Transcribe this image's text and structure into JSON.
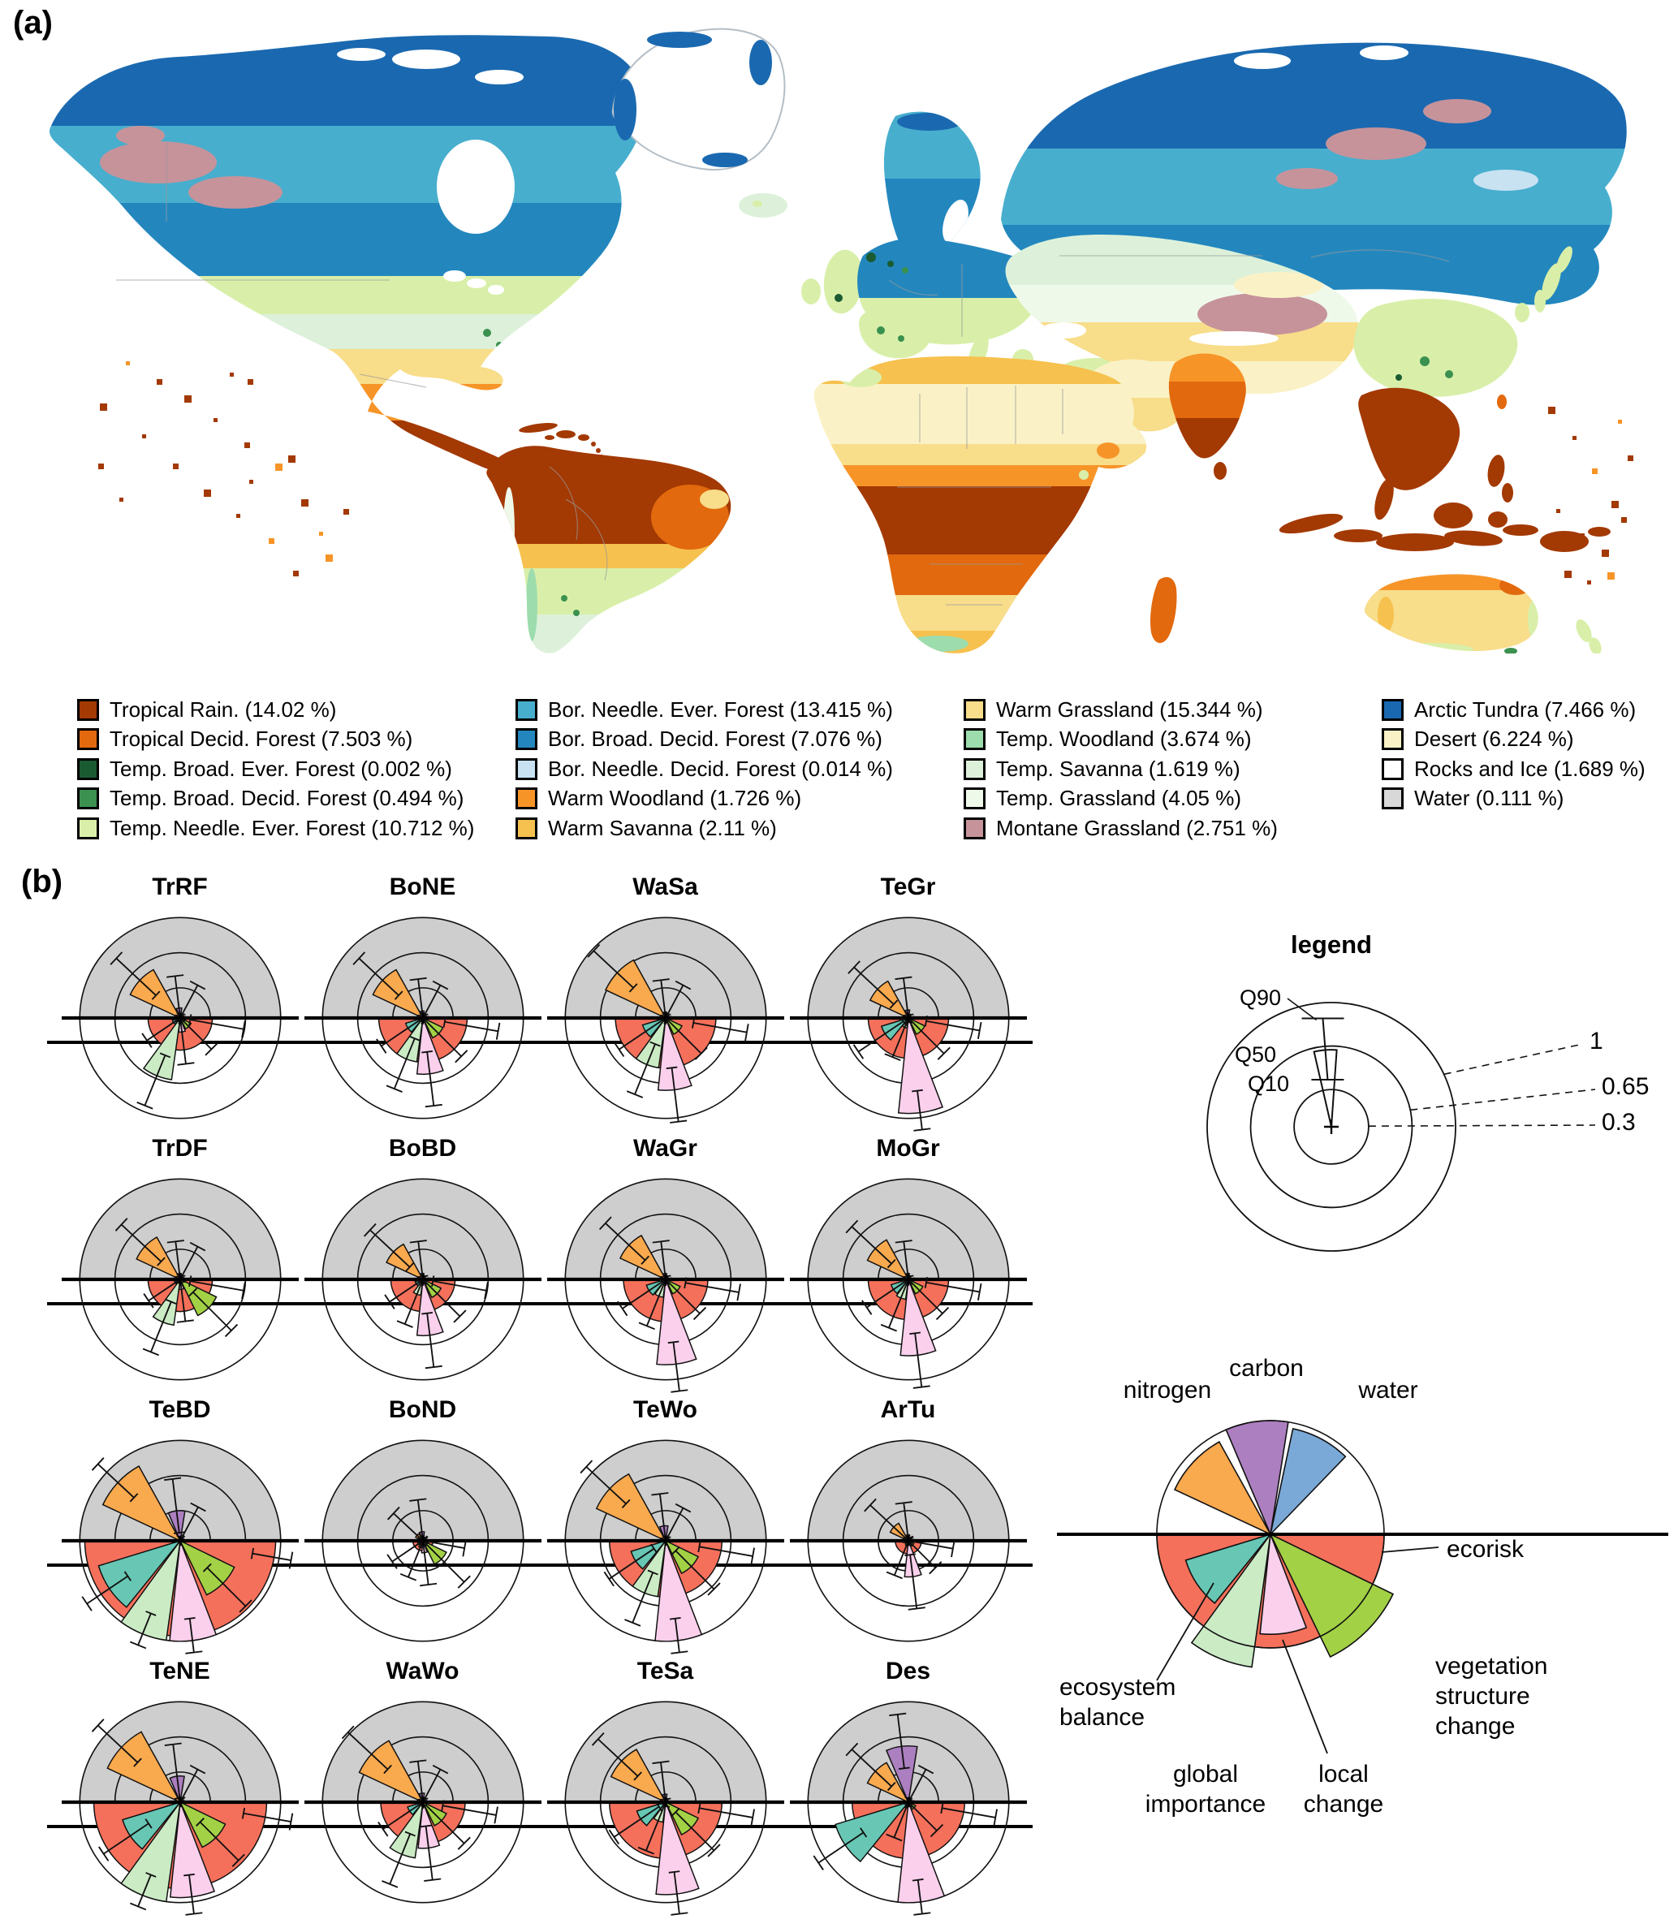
{
  "figure": {
    "panel_a_label": "(a)",
    "panel_b_label": "(b)"
  },
  "chart_data": {
    "type": "figure",
    "panels": [
      {
        "id": "a",
        "type": "map",
        "description": "Global biome classification map",
        "legend_columns": [
          5,
          5,
          5,
          4
        ],
        "legend": [
          {
            "key": "tropical_rain",
            "label": "Tropical Rain.",
            "percent": "14.02",
            "color": "#A33903"
          },
          {
            "key": "tropical_decid",
            "label": "Tropical Decid. Forest",
            "percent": "7.503",
            "color": "#E2690D"
          },
          {
            "key": "temp_broad_ever",
            "label": "Temp. Broad. Ever. Forest",
            "percent": "0.002",
            "color": "#1B5B32"
          },
          {
            "key": "temp_broad_decid",
            "label": "Temp. Broad. Decid. Forest",
            "percent": "0.494",
            "color": "#3B9150"
          },
          {
            "key": "temp_needle_ever",
            "label": "Temp. Needle. Ever. Forest",
            "percent": "10.712",
            "color": "#D9EFA9"
          },
          {
            "key": "bor_needle_ever",
            "label": "Bor. Needle. Ever. Forest",
            "percent": "13.415",
            "color": "#48AECE"
          },
          {
            "key": "bor_broad_decid",
            "label": "Bor. Broad. Decid. Forest",
            "percent": "7.076",
            "color": "#2387BE"
          },
          {
            "key": "bor_needle_decid",
            "label": "Bor. Needle. Decid. Forest",
            "percent": "0.014",
            "color": "#C8E2F2"
          },
          {
            "key": "warm_woodland",
            "label": "Warm Woodland",
            "percent": "1.726",
            "color": "#F79428"
          },
          {
            "key": "warm_savanna",
            "label": "Warm Savanna",
            "percent": "2.11",
            "color": "#F6C14E"
          },
          {
            "key": "warm_grassland",
            "label": "Warm Grassland",
            "percent": "15.344",
            "color": "#F8DD8A"
          },
          {
            "key": "temp_woodland",
            "label": "Temp. Woodland",
            "percent": "3.674",
            "color": "#9CDCAD"
          },
          {
            "key": "temp_savanna",
            "label": "Temp. Savanna",
            "percent": "1.619",
            "color": "#DDF1DA"
          },
          {
            "key": "temp_grassland",
            "label": "Temp. Grassland",
            "percent": "4.05",
            "color": "#EFF9EA"
          },
          {
            "key": "montane_grassland",
            "label": "Montane Grassland",
            "percent": "2.751",
            "color": "#C6939B"
          },
          {
            "key": "arctic_tundra",
            "label": "Arctic Tundra",
            "percent": "7.466",
            "color": "#1A69B0"
          },
          {
            "key": "desert",
            "label": "Desert",
            "percent": "6.224",
            "color": "#FAF2C6"
          },
          {
            "key": "rocks_ice",
            "label": "Rocks and Ice",
            "percent": "1.689",
            "color": "#FFFFFF"
          },
          {
            "key": "water",
            "label": "Water",
            "percent": "0.111",
            "color": "#D8D8D8"
          }
        ]
      },
      {
        "id": "b",
        "type": "polar-rose-grid",
        "gray_background": "#CECECE",
        "rings": [
          0.3,
          0.65,
          1
        ],
        "ring_labels": [
          "1",
          "0.65",
          "0.3"
        ],
        "quantile_labels": [
          "Q90",
          "Q50",
          "Q10"
        ],
        "legend_title": "legend",
        "legend_wedge": {
          "q10": 0.38,
          "q50": 0.62,
          "q90": 0.875
        },
        "whisker": {
          "q90_delta": 0.32,
          "q10_delta": 0.22,
          "max": 1.12,
          "min": 0.03
        },
        "metrics": [
          {
            "key": "nitrogen",
            "label": "nitrogen",
            "color": "#F9A94E",
            "a0": 119,
            "a1": 155,
            "mid": 137,
            "half": "upper"
          },
          {
            "key": "carbon",
            "label": "carbon",
            "color": "#AC7FC0",
            "a0": 81,
            "a1": 113,
            "mid": 97,
            "half": "upper"
          },
          {
            "key": "water",
            "label": "water",
            "color": "#7AA9D8",
            "a0": 46,
            "a1": 78,
            "mid": 62,
            "half": "upper"
          },
          {
            "key": "ecorisk",
            "label": "ecorisk",
            "color": "#F5705B",
            "a0": 180,
            "a1": 360,
            "mid": 350,
            "half": "lower",
            "semicircle": true
          },
          {
            "key": "ecosystem_balance",
            "label": "ecosystem balance",
            "color": "#67C7B4",
            "a0": 197,
            "a1": 231,
            "mid": 214,
            "half": "lower"
          },
          {
            "key": "global_importance",
            "label": "global importance",
            "color": "#CBEBC5",
            "a0": 234,
            "a1": 262,
            "mid": 248,
            "half": "lower"
          },
          {
            "key": "local_change",
            "label": "local change",
            "color": "#FAD0EC",
            "a0": 264,
            "a1": 291,
            "mid": 277,
            "half": "lower"
          },
          {
            "key": "vegetation_structure_change",
            "label": "vegetation structure change",
            "color": "#A3D145",
            "a0": 296,
            "a1": 334,
            "mid": 315,
            "half": "lower"
          }
        ],
        "grid": [
          [
            "TrRF",
            "BoNE",
            "WaSa",
            "TeGr"
          ],
          [
            "TrDF",
            "BoBD",
            "WaGr",
            "MoGr"
          ],
          [
            "TeBD",
            "BoND",
            "TeWo",
            "ArTu"
          ],
          [
            "TeNE",
            "WaWo",
            "TeSa",
            "Des"
          ]
        ],
        "biomes": [
          {
            "code": "TrRF",
            "values": {
              "nitrogen": 0.55,
              "carbon": 0.1,
              "water": 0.05,
              "ecorisk": 0.32,
              "ecosystem_balance": 0.08,
              "global_importance": 0.62,
              "local_change": 0.14,
              "vegetation_structure_change": 0.12
            }
          },
          {
            "code": "BoNE",
            "values": {
              "nitrogen": 0.55,
              "carbon": 0.07,
              "water": 0.05,
              "ecorisk": 0.44,
              "ecosystem_balance": 0.18,
              "global_importance": 0.44,
              "local_change": 0.56,
              "vegetation_structure_change": 0.22
            }
          },
          {
            "code": "WaSa",
            "values": {
              "nitrogen": 0.66,
              "carbon": 0.06,
              "water": 0.05,
              "ecorisk": 0.5,
              "ecosystem_balance": 0.24,
              "global_importance": 0.5,
              "local_change": 0.72,
              "vegetation_structure_change": 0.18
            }
          },
          {
            "code": "TeGr",
            "values": {
              "nitrogen": 0.42,
              "carbon": 0.08,
              "water": 0.04,
              "ecorisk": 0.4,
              "ecosystem_balance": 0.28,
              "global_importance": 0.1,
              "local_change": 0.95,
              "vegetation_structure_change": 0.18
            }
          },
          {
            "code": "TrDF",
            "values": {
              "nitrogen": 0.48,
              "carbon": 0.06,
              "water": 0.05,
              "ecorisk": 0.32,
              "ecosystem_balance": 0.06,
              "global_importance": 0.46,
              "local_change": 0.1,
              "vegetation_structure_change": 0.4
            }
          },
          {
            "code": "BoBD",
            "values": {
              "nitrogen": 0.4,
              "carbon": 0.06,
              "water": 0.04,
              "ecorisk": 0.32,
              "ecosystem_balance": 0.08,
              "global_importance": 0.16,
              "local_change": 0.56,
              "vegetation_structure_change": 0.2
            }
          },
          {
            "code": "WaGr",
            "values": {
              "nitrogen": 0.5,
              "carbon": 0.06,
              "water": 0.04,
              "ecorisk": 0.42,
              "ecosystem_balance": 0.2,
              "global_importance": 0.18,
              "local_change": 0.85,
              "vegetation_structure_change": 0.16
            }
          },
          {
            "code": "MoGr",
            "values": {
              "nitrogen": 0.45,
              "carbon": 0.06,
              "water": 0.04,
              "ecorisk": 0.4,
              "ecosystem_balance": 0.18,
              "global_importance": 0.2,
              "local_change": 0.76,
              "vegetation_structure_change": 0.16
            }
          },
          {
            "code": "TeBD",
            "values": {
              "nitrogen": 0.85,
              "carbon": 0.3,
              "water": 0.06,
              "ecorisk": 0.95,
              "ecosystem_balance": 0.85,
              "global_importance": 1.0,
              "local_change": 1.0,
              "vegetation_structure_change": 0.6
            }
          },
          {
            "code": "BoND",
            "values": {
              "nitrogen": 0.08,
              "carbon": 0.09,
              "water": 0.04,
              "ecorisk": 0.1,
              "ecosystem_balance": 0.05,
              "global_importance": 0.07,
              "local_change": 0.12,
              "vegetation_structure_change": 0.26
            }
          },
          {
            "code": "TeWo",
            "values": {
              "nitrogen": 0.76,
              "carbon": 0.15,
              "water": 0.05,
              "ecorisk": 0.56,
              "ecosystem_balance": 0.36,
              "global_importance": 0.56,
              "local_change": 1.0,
              "vegetation_structure_change": 0.36
            }
          },
          {
            "code": "ArTu",
            "values": {
              "nitrogen": 0.2,
              "carbon": 0.06,
              "water": 0.04,
              "ecorisk": 0.13,
              "ecosystem_balance": 0.04,
              "global_importance": 0.05,
              "local_change": 0.36,
              "vegetation_structure_change": 0.06
            }
          },
          {
            "code": "TeNE",
            "values": {
              "nitrogen": 0.8,
              "carbon": 0.26,
              "water": 0.05,
              "ecorisk": 0.86,
              "ecosystem_balance": 0.6,
              "global_importance": 1.0,
              "local_change": 0.95,
              "vegetation_structure_change": 0.5
            }
          },
          {
            "code": "WaWo",
            "values": {
              "nitrogen": 0.7,
              "carbon": 0.09,
              "water": 0.05,
              "ecorisk": 0.42,
              "ecosystem_balance": 0.16,
              "global_importance": 0.56,
              "local_change": 0.46,
              "vegetation_structure_change": 0.26
            }
          },
          {
            "code": "TeSa",
            "values": {
              "nitrogen": 0.6,
              "carbon": 0.08,
              "water": 0.04,
              "ecorisk": 0.56,
              "ecosystem_balance": 0.3,
              "global_importance": 0.2,
              "local_change": 0.92,
              "vegetation_structure_change": 0.36
            }
          },
          {
            "code": "Des",
            "values": {
              "nitrogen": 0.45,
              "carbon": 0.56,
              "water": 0.05,
              "ecorisk": 0.56,
              "ecosystem_balance": 0.76,
              "global_importance": 0.06,
              "local_change": 1.0,
              "vegetation_structure_change": 0.08
            }
          }
        ],
        "category_legend_values": {
          "nitrogen": 0.93,
          "carbon": 1.0,
          "water": 0.95,
          "ecorisk": 1.0,
          "ecosystem_balance": 0.78,
          "global_importance": 1.18,
          "local_change": 0.88,
          "vegetation_structure_change": 1.2
        }
      }
    ]
  }
}
